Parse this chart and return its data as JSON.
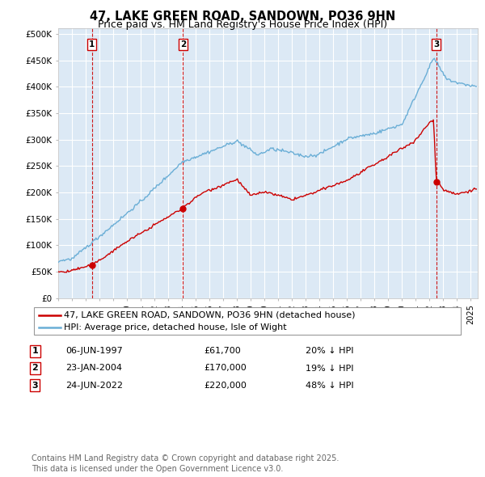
{
  "title": "47, LAKE GREEN ROAD, SANDOWN, PO36 9HN",
  "subtitle": "Price paid vs. HM Land Registry's House Price Index (HPI)",
  "ylabel_ticks": [
    "£0",
    "£50K",
    "£100K",
    "£150K",
    "£200K",
    "£250K",
    "£300K",
    "£350K",
    "£400K",
    "£450K",
    "£500K"
  ],
  "ytick_values": [
    0,
    50000,
    100000,
    150000,
    200000,
    250000,
    300000,
    350000,
    400000,
    450000,
    500000
  ],
  "ylim": [
    0,
    510000
  ],
  "xlim_start": 1995.0,
  "xlim_end": 2025.5,
  "background_color": "#ffffff",
  "plot_bg_color": "#dce9f5",
  "grid_color": "#ffffff",
  "hpi_line_color": "#6aaed6",
  "price_line_color": "#cc0000",
  "vline_color": "#cc0000",
  "sale_dates": [
    1997.44,
    2004.07,
    2022.48
  ],
  "sale_prices": [
    61700,
    170000,
    220000
  ],
  "sale_labels": [
    "1",
    "2",
    "3"
  ],
  "legend_entry1": "47, LAKE GREEN ROAD, SANDOWN, PO36 9HN (detached house)",
  "legend_entry2": "HPI: Average price, detached house, Isle of Wight",
  "table_data": [
    [
      "1",
      "06-JUN-1997",
      "£61,700",
      "20% ↓ HPI"
    ],
    [
      "2",
      "23-JAN-2004",
      "£170,000",
      "19% ↓ HPI"
    ],
    [
      "3",
      "24-JUN-2022",
      "£220,000",
      "48% ↓ HPI"
    ]
  ],
  "footnote": "Contains HM Land Registry data © Crown copyright and database right 2025.\nThis data is licensed under the Open Government Licence v3.0.",
  "title_fontsize": 10.5,
  "subtitle_fontsize": 9,
  "tick_fontsize": 7.5,
  "legend_fontsize": 8,
  "table_fontsize": 8,
  "footnote_fontsize": 7
}
